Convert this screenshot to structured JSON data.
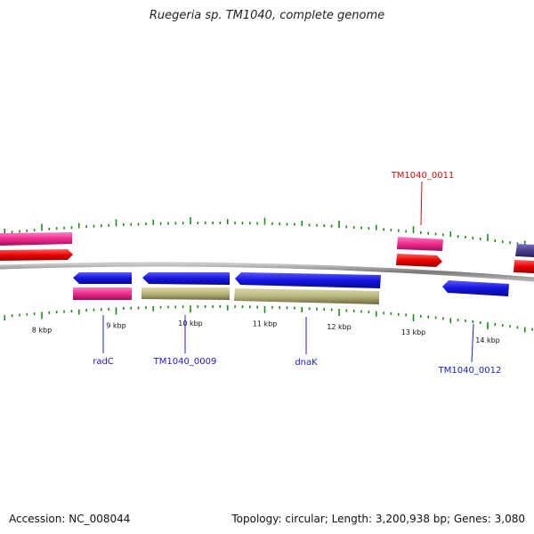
{
  "title": "Ruegeria sp. TM1040, complete genome",
  "footer": {
    "accession": "Accession: NC_008044",
    "summary": "Topology: circular; Length: 3,200,938 bp; Genes: 3,080"
  },
  "colors": {
    "backbone": "#8a8a8a",
    "tick": "#1d8a1d",
    "label_blue": "#1c1cc8",
    "label_red": "#d01010",
    "gene_blue": "#1414e0",
    "gene_red": "#ee0000",
    "gene_pink": "#ee2a8e",
    "gene_olive": "#b8b47c",
    "gene_purple": "#4a3f8c"
  },
  "ticks": [
    {
      "kbp": 8,
      "label": "8 kbp"
    },
    {
      "kbp": 9,
      "label": "9 kbp"
    },
    {
      "kbp": 10,
      "label": "10 kbp"
    },
    {
      "kbp": 11,
      "label": "11 kbp"
    },
    {
      "kbp": 12,
      "label": "12 kbp"
    },
    {
      "kbp": 13,
      "label": "13 kbp"
    },
    {
      "kbp": 14,
      "label": "14 kbp"
    }
  ],
  "gene_labels": [
    {
      "name": "radC",
      "color": "label_blue"
    },
    {
      "name": "TM1040_0009",
      "color": "label_blue"
    },
    {
      "name": "dnaK",
      "color": "label_blue"
    },
    {
      "name": "TM1040_0011",
      "color": "label_red"
    },
    {
      "name": "TM1040_0012",
      "color": "label_blue"
    }
  ]
}
